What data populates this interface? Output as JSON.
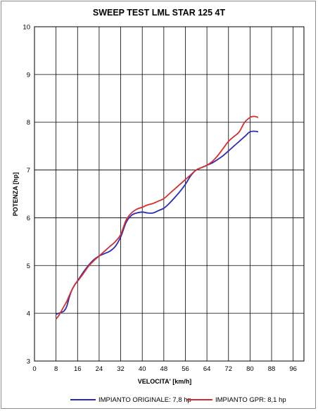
{
  "chart_data": {
    "type": "line",
    "title": "SWEEP TEST LML STAR 125 4T",
    "xlabel": "VELOCITA' [km/h]",
    "ylabel": "POTENZA [hp]",
    "xlim": [
      0,
      100
    ],
    "ylim": [
      3,
      10
    ],
    "xticks": [
      "0",
      "8",
      "16",
      "24",
      "32",
      "40",
      "48",
      "56",
      "64",
      "72",
      "80",
      "88",
      "96"
    ],
    "yticks": [
      "3",
      "4",
      "5",
      "6",
      "7",
      "8",
      "9",
      "10"
    ],
    "grid": true,
    "legend_position": "bottom",
    "series": [
      {
        "name": "IMPIANTO ORIGINALE: 7,8 hp",
        "color": "#2b2bb8",
        "x": [
          8,
          9,
          10,
          11,
          12,
          13,
          14,
          15,
          16,
          18,
          20,
          22,
          24,
          26,
          28,
          30,
          32,
          34,
          36,
          38,
          40,
          42,
          44,
          46,
          48,
          50,
          52,
          54,
          56,
          58,
          60,
          62,
          64,
          66,
          68,
          70,
          72,
          74,
          76,
          78,
          80,
          82,
          83
        ],
        "y": [
          3.98,
          4.0,
          4.02,
          4.05,
          4.15,
          4.35,
          4.5,
          4.6,
          4.68,
          4.85,
          5.0,
          5.12,
          5.2,
          5.25,
          5.3,
          5.4,
          5.6,
          5.9,
          6.05,
          6.1,
          6.12,
          6.1,
          6.1,
          6.15,
          6.2,
          6.3,
          6.42,
          6.55,
          6.7,
          6.88,
          7.0,
          7.05,
          7.1,
          7.15,
          7.22,
          7.3,
          7.4,
          7.5,
          7.6,
          7.7,
          7.8,
          7.81,
          7.8
        ]
      },
      {
        "name": "IMPIANTO GPR: 8,1 hp",
        "color": "#d62e2e",
        "x": [
          8,
          9,
          10,
          11,
          12,
          13,
          14,
          15,
          16,
          18,
          20,
          22,
          24,
          26,
          28,
          30,
          32,
          34,
          36,
          38,
          40,
          42,
          44,
          46,
          48,
          50,
          52,
          54,
          56,
          58,
          60,
          62,
          64,
          66,
          68,
          70,
          72,
          74,
          76,
          78,
          80,
          81,
          82,
          83
        ],
        "y": [
          3.88,
          3.95,
          4.05,
          4.15,
          4.25,
          4.38,
          4.5,
          4.6,
          4.67,
          4.82,
          4.98,
          5.1,
          5.2,
          5.3,
          5.4,
          5.5,
          5.65,
          5.95,
          6.1,
          6.18,
          6.22,
          6.27,
          6.3,
          6.35,
          6.4,
          6.5,
          6.6,
          6.7,
          6.8,
          6.9,
          7.0,
          7.05,
          7.1,
          7.18,
          7.3,
          7.45,
          7.6,
          7.7,
          7.8,
          8.0,
          8.1,
          8.12,
          8.12,
          8.1
        ]
      }
    ]
  }
}
